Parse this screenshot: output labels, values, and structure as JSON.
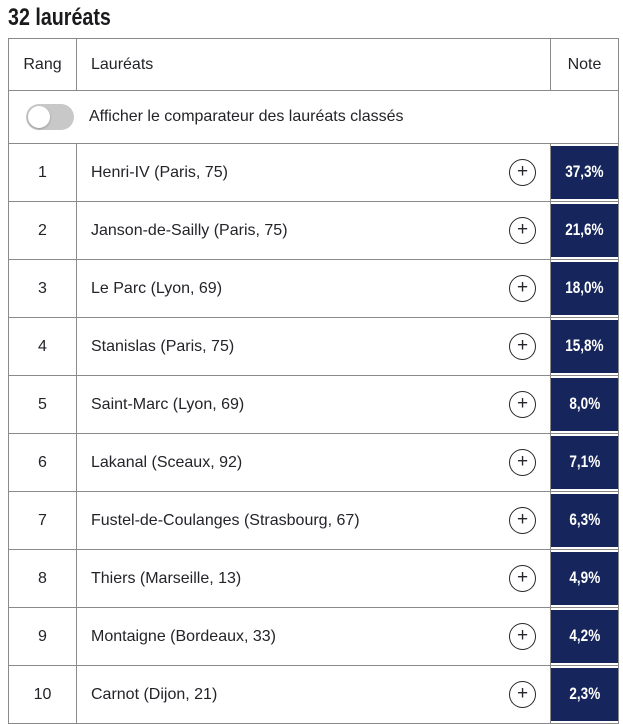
{
  "page": {
    "title": "32 lauréats"
  },
  "table": {
    "headers": {
      "rank": "Rang",
      "laureates": "Lauréats",
      "note": "Note"
    },
    "toggle": {
      "label": "Afficher le comparateur des lauréats classés",
      "state": "off"
    },
    "add_button_glyph": "+",
    "rows": [
      {
        "rank": "1",
        "name": "Henri-IV (Paris, 75)",
        "note": "37,3%"
      },
      {
        "rank": "2",
        "name": "Janson-de-Sailly (Paris, 75)",
        "note": "21,6%"
      },
      {
        "rank": "3",
        "name": "Le Parc (Lyon, 69)",
        "note": "18,0%"
      },
      {
        "rank": "4",
        "name": "Stanislas (Paris, 75)",
        "note": "15,8%"
      },
      {
        "rank": "5",
        "name": "Saint-Marc (Lyon, 69)",
        "note": "8,0%"
      },
      {
        "rank": "6",
        "name": "Lakanal (Sceaux, 92)",
        "note": "7,1%"
      },
      {
        "rank": "7",
        "name": "Fustel-de-Coulanges (Strasbourg, 67)",
        "note": "6,3%"
      },
      {
        "rank": "8",
        "name": "Thiers (Marseille, 13)",
        "note": "4,9%"
      },
      {
        "rank": "9",
        "name": "Montaigne (Bordeaux, 33)",
        "note": "4,2%"
      },
      {
        "rank": "10",
        "name": "Carnot (Dijon, 21)",
        "note": "2,3%"
      }
    ]
  },
  "colors": {
    "note_badge_navy": "#16265c",
    "note_text": "#ffffff",
    "table_border": "#8a8a8a",
    "toggle_track_off": "#c8c8c8",
    "body_text": "#232329"
  },
  "icons": {
    "toggle": "toggle-off-icon",
    "add": "plus-circle-icon"
  }
}
